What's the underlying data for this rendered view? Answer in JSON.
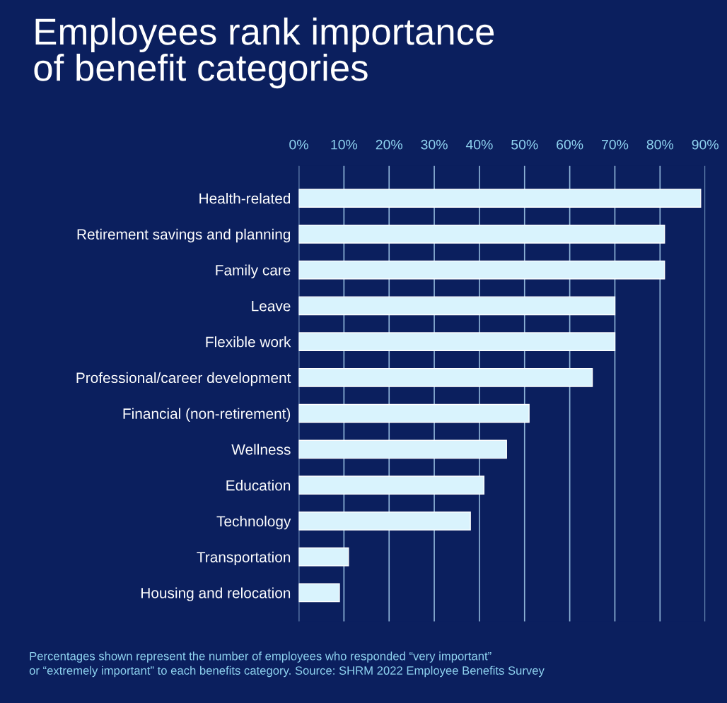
{
  "chart_data": {
    "type": "bar",
    "orientation": "horizontal",
    "title": "Employees rank importance\nof benefit categories",
    "categories": [
      "Health-related",
      "Retirement savings and planning",
      "Family care",
      "Leave",
      "Flexible work",
      "Professional/career development",
      "Financial (non-retirement)",
      "Wellness",
      "Education",
      "Technology",
      "Transportation",
      "Housing and relocation"
    ],
    "values": [
      89,
      81,
      81,
      70,
      70,
      65,
      51,
      46,
      41,
      38,
      11,
      9
    ],
    "color": "#d9f3fd",
    "xlim": [
      0,
      90
    ],
    "xticks": [
      {
        "value": 0,
        "label": "0%"
      },
      {
        "value": 10,
        "label": "10%"
      },
      {
        "value": 20,
        "label": "20%"
      },
      {
        "value": 30,
        "label": "30%"
      },
      {
        "value": 40,
        "label": "40%"
      },
      {
        "value": 50,
        "label": "50%"
      },
      {
        "value": 60,
        "label": "60%"
      },
      {
        "value": 70,
        "label": "70%"
      },
      {
        "value": 80,
        "label": "80%"
      },
      {
        "value": 90,
        "label": "90%"
      }
    ],
    "grid": "x",
    "annotations": [
      "Percentages shown represent the number of employees who responded “very important”\nor “extremely important” to each benefits category. Source: SHRM 2022 Employee Benefits Survey"
    ]
  }
}
